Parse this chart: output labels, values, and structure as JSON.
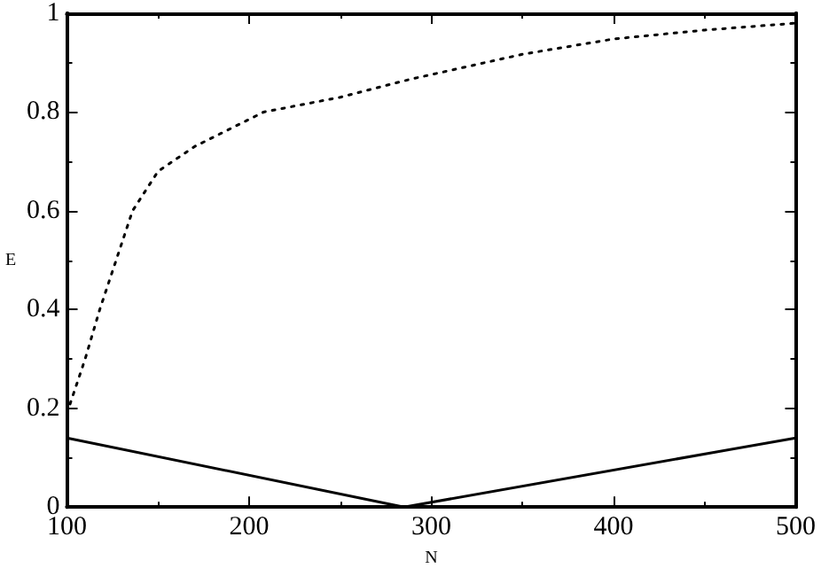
{
  "chart_data": {
    "type": "line",
    "xlabel": "N",
    "ylabel": "E",
    "xlim": [
      100,
      500
    ],
    "ylim": [
      0,
      1
    ],
    "xticks": [
      100,
      200,
      300,
      400,
      500
    ],
    "yticks": [
      0,
      0.2,
      0.4,
      0.6,
      0.8,
      1
    ],
    "grid": false,
    "marker": "none",
    "series": [
      {
        "color": "#000000",
        "line_style": "dotted",
        "x": [
          100,
          110,
          118,
          127,
          136,
          150,
          170,
          208,
          250,
          288,
          350,
          400,
          450,
          500
        ],
        "values": [
          0.19,
          0.3,
          0.4,
          0.5,
          0.6,
          0.68,
          0.73,
          0.8,
          0.83,
          0.866,
          0.917,
          0.948,
          0.966,
          0.98
        ]
      },
      {
        "color": "#000000",
        "line_style": "solid",
        "x": [
          100,
          285,
          500
        ],
        "values": [
          0.14,
          0,
          0.14
        ]
      }
    ]
  }
}
